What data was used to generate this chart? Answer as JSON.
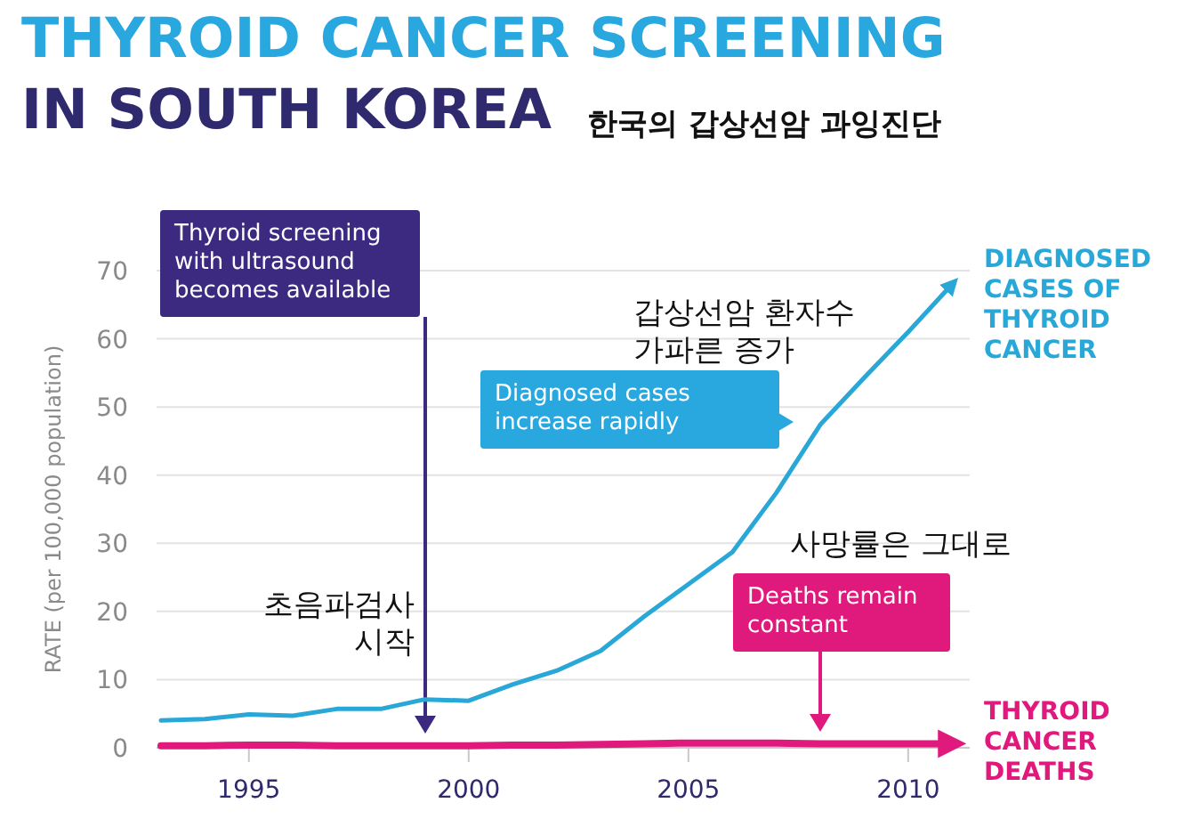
{
  "chart_data": {
    "type": "line",
    "title": "THYROID CANCER SCREENING",
    "subtitle": "IN SOUTH KOREA",
    "ylabel": "RATE (per 100,000 population)",
    "x": [
      1993,
      1994,
      1995,
      1996,
      1997,
      1998,
      1999,
      2000,
      2001,
      2002,
      2003,
      2004,
      2005,
      2006,
      2007,
      2008,
      2009,
      2010,
      2011
    ],
    "series": [
      {
        "name": "DIAGNOSED CASES OF THYROID CANCER",
        "color": "#29a8d8",
        "values": [
          4.0,
          4.2,
          4.9,
          4.7,
          5.7,
          5.7,
          7.1,
          6.9,
          9.3,
          11.3,
          14.2,
          19.3,
          24,
          28.7,
          37.4,
          47.4,
          54.3,
          61,
          68
        ]
      },
      {
        "name": "THYROID CANCER DEATHS",
        "color": "#e0197d",
        "values": [
          0.3,
          0.3,
          0.4,
          0.4,
          0.3,
          0.3,
          0.3,
          0.3,
          0.4,
          0.4,
          0.5,
          0.6,
          0.7,
          0.7,
          0.7,
          0.6,
          0.6,
          0.6,
          0.6
        ]
      }
    ],
    "xlim": [
      1992.9,
      2011.4
    ],
    "ylim": [
      0,
      70
    ],
    "xticks": [
      1995,
      2000,
      2005,
      2010
    ],
    "yticks": [
      0,
      10,
      20,
      30,
      40,
      50,
      60,
      70
    ],
    "grid": "y",
    "annotations": [
      "Thyroid screening with ultrasound becomes available",
      "Diagnosed cases increase rapidly",
      "Deaths remain constant",
      "초음파검사 시작",
      "갑상선암 환자수 가파른 증가",
      "사망률은 그대로",
      "한국의 갑상선암 과잉진단"
    ]
  }
}
